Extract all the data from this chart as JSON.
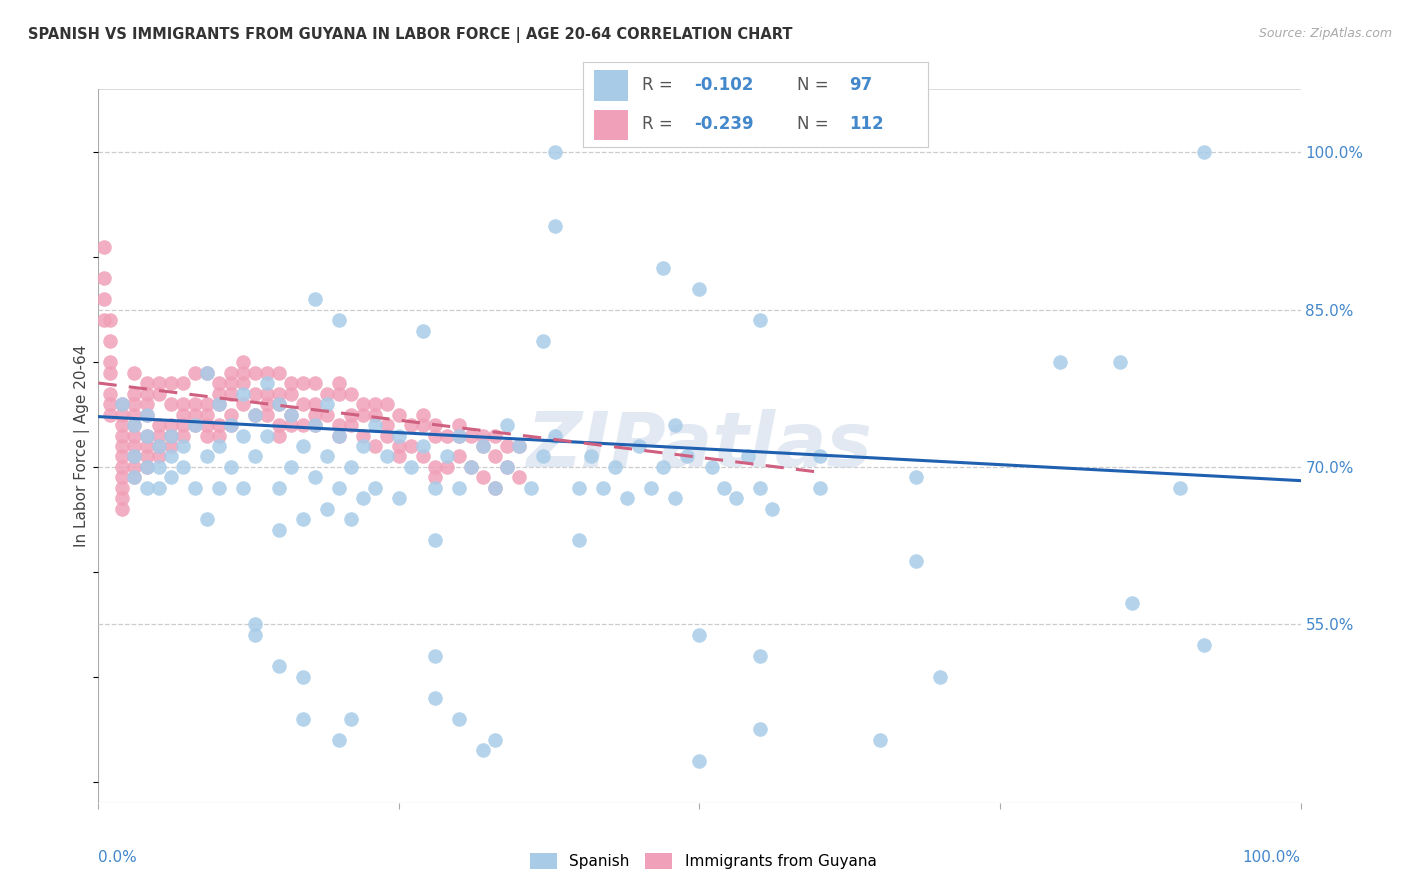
{
  "title": "SPANISH VS IMMIGRANTS FROM GUYANA IN LABOR FORCE | AGE 20-64 CORRELATION CHART",
  "source": "Source: ZipAtlas.com",
  "ylabel": "In Labor Force | Age 20-64",
  "ytick_labels": [
    "100.0%",
    "85.0%",
    "70.0%",
    "55.0%"
  ],
  "ytick_values": [
    1.0,
    0.85,
    0.7,
    0.55
  ],
  "xlim": [
    0.0,
    1.0
  ],
  "ylim": [
    0.38,
    1.06
  ],
  "blue_color": "#a8cce8",
  "pink_color": "#f0a0b8",
  "trendline_blue": "#2060b0",
  "trendline_pink": "#d06080",
  "title_color": "#333333",
  "axis_color": "#4488cc",
  "watermark": "ZIPatlas",
  "blue_scatter": [
    [
      0.02,
      0.76
    ],
    [
      0.03,
      0.74
    ],
    [
      0.03,
      0.71
    ],
    [
      0.03,
      0.69
    ],
    [
      0.04,
      0.73
    ],
    [
      0.04,
      0.7
    ],
    [
      0.04,
      0.68
    ],
    [
      0.04,
      0.75
    ],
    [
      0.05,
      0.72
    ],
    [
      0.05,
      0.7
    ],
    [
      0.05,
      0.68
    ],
    [
      0.06,
      0.73
    ],
    [
      0.06,
      0.71
    ],
    [
      0.06,
      0.69
    ],
    [
      0.07,
      0.72
    ],
    [
      0.07,
      0.7
    ],
    [
      0.08,
      0.74
    ],
    [
      0.08,
      0.68
    ],
    [
      0.09,
      0.79
    ],
    [
      0.09,
      0.71
    ],
    [
      0.09,
      0.65
    ],
    [
      0.1,
      0.76
    ],
    [
      0.1,
      0.72
    ],
    [
      0.1,
      0.68
    ],
    [
      0.11,
      0.74
    ],
    [
      0.11,
      0.7
    ],
    [
      0.12,
      0.77
    ],
    [
      0.12,
      0.73
    ],
    [
      0.12,
      0.68
    ],
    [
      0.13,
      0.75
    ],
    [
      0.13,
      0.71
    ],
    [
      0.14,
      0.78
    ],
    [
      0.14,
      0.73
    ],
    [
      0.15,
      0.76
    ],
    [
      0.15,
      0.68
    ],
    [
      0.15,
      0.64
    ],
    [
      0.16,
      0.75
    ],
    [
      0.16,
      0.7
    ],
    [
      0.17,
      0.72
    ],
    [
      0.17,
      0.65
    ],
    [
      0.18,
      0.74
    ],
    [
      0.18,
      0.69
    ],
    [
      0.19,
      0.76
    ],
    [
      0.19,
      0.71
    ],
    [
      0.19,
      0.66
    ],
    [
      0.2,
      0.73
    ],
    [
      0.2,
      0.68
    ],
    [
      0.21,
      0.7
    ],
    [
      0.21,
      0.65
    ],
    [
      0.22,
      0.72
    ],
    [
      0.22,
      0.67
    ],
    [
      0.23,
      0.74
    ],
    [
      0.23,
      0.68
    ],
    [
      0.24,
      0.71
    ],
    [
      0.25,
      0.73
    ],
    [
      0.25,
      0.67
    ],
    [
      0.26,
      0.7
    ],
    [
      0.27,
      0.72
    ],
    [
      0.28,
      0.68
    ],
    [
      0.28,
      0.63
    ],
    [
      0.29,
      0.71
    ],
    [
      0.3,
      0.73
    ],
    [
      0.3,
      0.68
    ],
    [
      0.31,
      0.7
    ],
    [
      0.32,
      0.72
    ],
    [
      0.33,
      0.68
    ],
    [
      0.34,
      0.74
    ],
    [
      0.34,
      0.7
    ],
    [
      0.35,
      0.72
    ],
    [
      0.36,
      0.68
    ],
    [
      0.37,
      0.71
    ],
    [
      0.38,
      0.73
    ],
    [
      0.4,
      0.68
    ],
    [
      0.4,
      0.63
    ],
    [
      0.41,
      0.71
    ],
    [
      0.42,
      0.68
    ],
    [
      0.43,
      0.7
    ],
    [
      0.44,
      0.67
    ],
    [
      0.45,
      0.72
    ],
    [
      0.46,
      0.68
    ],
    [
      0.47,
      0.7
    ],
    [
      0.48,
      0.74
    ],
    [
      0.48,
      0.67
    ],
    [
      0.49,
      0.71
    ],
    [
      0.51,
      0.7
    ],
    [
      0.52,
      0.68
    ],
    [
      0.53,
      0.67
    ],
    [
      0.54,
      0.71
    ],
    [
      0.55,
      0.68
    ],
    [
      0.56,
      0.66
    ],
    [
      0.6,
      0.71
    ],
    [
      0.6,
      0.68
    ],
    [
      0.68,
      0.69
    ],
    [
      0.68,
      0.61
    ],
    [
      0.8,
      0.8
    ],
    [
      0.85,
      0.8
    ],
    [
      0.86,
      0.57
    ],
    [
      0.9,
      0.68
    ],
    [
      0.92,
      1.0
    ],
    [
      0.38,
      1.0
    ],
    [
      0.38,
      0.93
    ],
    [
      0.47,
      0.89
    ],
    [
      0.5,
      0.87
    ],
    [
      0.55,
      0.84
    ],
    [
      0.18,
      0.86
    ],
    [
      0.2,
      0.84
    ],
    [
      0.27,
      0.83
    ],
    [
      0.37,
      0.82
    ],
    [
      0.33,
      0.44
    ],
    [
      0.28,
      0.52
    ],
    [
      0.28,
      0.48
    ],
    [
      0.3,
      0.46
    ],
    [
      0.32,
      0.43
    ],
    [
      0.13,
      0.55
    ],
    [
      0.13,
      0.54
    ],
    [
      0.15,
      0.51
    ],
    [
      0.17,
      0.5
    ],
    [
      0.17,
      0.46
    ],
    [
      0.2,
      0.44
    ],
    [
      0.21,
      0.46
    ],
    [
      0.5,
      0.54
    ],
    [
      0.55,
      0.52
    ],
    [
      0.7,
      0.5
    ],
    [
      0.92,
      0.53
    ],
    [
      0.5,
      0.42
    ],
    [
      0.55,
      0.45
    ],
    [
      0.65,
      0.44
    ]
  ],
  "pink_scatter": [
    [
      0.005,
      0.91
    ],
    [
      0.005,
      0.88
    ],
    [
      0.005,
      0.86
    ],
    [
      0.005,
      0.84
    ],
    [
      0.01,
      0.84
    ],
    [
      0.01,
      0.82
    ],
    [
      0.01,
      0.8
    ],
    [
      0.01,
      0.79
    ],
    [
      0.01,
      0.77
    ],
    [
      0.01,
      0.76
    ],
    [
      0.01,
      0.75
    ],
    [
      0.02,
      0.76
    ],
    [
      0.02,
      0.75
    ],
    [
      0.02,
      0.74
    ],
    [
      0.02,
      0.73
    ],
    [
      0.02,
      0.72
    ],
    [
      0.02,
      0.71
    ],
    [
      0.02,
      0.7
    ],
    [
      0.02,
      0.69
    ],
    [
      0.02,
      0.68
    ],
    [
      0.02,
      0.67
    ],
    [
      0.02,
      0.66
    ],
    [
      0.03,
      0.79
    ],
    [
      0.03,
      0.77
    ],
    [
      0.03,
      0.76
    ],
    [
      0.03,
      0.75
    ],
    [
      0.03,
      0.74
    ],
    [
      0.03,
      0.73
    ],
    [
      0.03,
      0.72
    ],
    [
      0.03,
      0.71
    ],
    [
      0.03,
      0.7
    ],
    [
      0.03,
      0.69
    ],
    [
      0.04,
      0.78
    ],
    [
      0.04,
      0.77
    ],
    [
      0.04,
      0.76
    ],
    [
      0.04,
      0.75
    ],
    [
      0.04,
      0.73
    ],
    [
      0.04,
      0.72
    ],
    [
      0.04,
      0.71
    ],
    [
      0.04,
      0.7
    ],
    [
      0.05,
      0.78
    ],
    [
      0.05,
      0.77
    ],
    [
      0.05,
      0.74
    ],
    [
      0.05,
      0.73
    ],
    [
      0.05,
      0.72
    ],
    [
      0.05,
      0.71
    ],
    [
      0.06,
      0.78
    ],
    [
      0.06,
      0.76
    ],
    [
      0.06,
      0.74
    ],
    [
      0.06,
      0.73
    ],
    [
      0.06,
      0.72
    ],
    [
      0.07,
      0.78
    ],
    [
      0.07,
      0.76
    ],
    [
      0.07,
      0.75
    ],
    [
      0.07,
      0.74
    ],
    [
      0.07,
      0.73
    ],
    [
      0.08,
      0.79
    ],
    [
      0.08,
      0.76
    ],
    [
      0.08,
      0.75
    ],
    [
      0.08,
      0.74
    ],
    [
      0.09,
      0.79
    ],
    [
      0.09,
      0.76
    ],
    [
      0.09,
      0.75
    ],
    [
      0.09,
      0.74
    ],
    [
      0.09,
      0.73
    ],
    [
      0.1,
      0.78
    ],
    [
      0.1,
      0.77
    ],
    [
      0.1,
      0.76
    ],
    [
      0.1,
      0.74
    ],
    [
      0.1,
      0.73
    ],
    [
      0.11,
      0.79
    ],
    [
      0.11,
      0.78
    ],
    [
      0.11,
      0.77
    ],
    [
      0.11,
      0.75
    ],
    [
      0.11,
      0.74
    ],
    [
      0.12,
      0.8
    ],
    [
      0.12,
      0.79
    ],
    [
      0.12,
      0.78
    ],
    [
      0.12,
      0.76
    ],
    [
      0.13,
      0.79
    ],
    [
      0.13,
      0.77
    ],
    [
      0.13,
      0.75
    ],
    [
      0.14,
      0.79
    ],
    [
      0.14,
      0.77
    ],
    [
      0.14,
      0.76
    ],
    [
      0.14,
      0.75
    ],
    [
      0.15,
      0.79
    ],
    [
      0.15,
      0.77
    ],
    [
      0.15,
      0.76
    ],
    [
      0.15,
      0.74
    ],
    [
      0.15,
      0.73
    ],
    [
      0.16,
      0.78
    ],
    [
      0.16,
      0.77
    ],
    [
      0.16,
      0.75
    ],
    [
      0.16,
      0.74
    ],
    [
      0.17,
      0.78
    ],
    [
      0.17,
      0.76
    ],
    [
      0.17,
      0.74
    ],
    [
      0.18,
      0.78
    ],
    [
      0.18,
      0.76
    ],
    [
      0.18,
      0.75
    ],
    [
      0.18,
      0.74
    ],
    [
      0.19,
      0.77
    ],
    [
      0.19,
      0.75
    ],
    [
      0.2,
      0.78
    ],
    [
      0.2,
      0.77
    ],
    [
      0.2,
      0.74
    ],
    [
      0.2,
      0.73
    ],
    [
      0.21,
      0.77
    ],
    [
      0.21,
      0.75
    ],
    [
      0.21,
      0.74
    ],
    [
      0.22,
      0.76
    ],
    [
      0.22,
      0.75
    ],
    [
      0.22,
      0.73
    ],
    [
      0.23,
      0.76
    ],
    [
      0.23,
      0.75
    ],
    [
      0.23,
      0.72
    ],
    [
      0.24,
      0.76
    ],
    [
      0.24,
      0.74
    ],
    [
      0.24,
      0.73
    ],
    [
      0.25,
      0.75
    ],
    [
      0.25,
      0.72
    ],
    [
      0.25,
      0.71
    ],
    [
      0.26,
      0.74
    ],
    [
      0.26,
      0.72
    ],
    [
      0.27,
      0.75
    ],
    [
      0.27,
      0.74
    ],
    [
      0.27,
      0.71
    ],
    [
      0.28,
      0.74
    ],
    [
      0.28,
      0.73
    ],
    [
      0.28,
      0.7
    ],
    [
      0.28,
      0.69
    ],
    [
      0.29,
      0.73
    ],
    [
      0.29,
      0.7
    ],
    [
      0.3,
      0.74
    ],
    [
      0.3,
      0.73
    ],
    [
      0.3,
      0.71
    ],
    [
      0.31,
      0.73
    ],
    [
      0.31,
      0.7
    ],
    [
      0.32,
      0.73
    ],
    [
      0.32,
      0.72
    ],
    [
      0.32,
      0.69
    ],
    [
      0.33,
      0.73
    ],
    [
      0.33,
      0.71
    ],
    [
      0.33,
      0.68
    ],
    [
      0.34,
      0.72
    ],
    [
      0.34,
      0.7
    ],
    [
      0.35,
      0.72
    ],
    [
      0.35,
      0.69
    ]
  ],
  "blue_trend_x": [
    0.0,
    1.0
  ],
  "blue_trend_y": [
    0.748,
    0.687
  ],
  "pink_trend_x": [
    0.0,
    0.6
  ],
  "pink_trend_y": [
    0.78,
    0.695
  ],
  "legend_r1": "-0.102",
  "legend_n1": "97",
  "legend_r2": "-0.239",
  "legend_n2": "112"
}
